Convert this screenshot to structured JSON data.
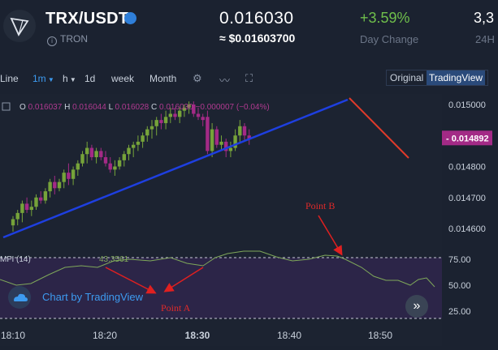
{
  "header": {
    "pair": "TRX/USDT",
    "coin_name": "TRON",
    "price": "0.016030",
    "usd_price": "≈ $0.01603700",
    "change": "+3.59%",
    "change_label": "Day Change",
    "high_partial": "3,3",
    "high_label": "24H"
  },
  "toolbar": {
    "intervals": [
      "Line",
      "1m",
      "h",
      "1d",
      "week",
      "Month"
    ],
    "view_original": "Original",
    "view_tradingview": "TradingView"
  },
  "chart_data": {
    "type": "candlestick",
    "ohlc_legend": {
      "O": "0.016037",
      "H": "0.016044",
      "L": "0.016028",
      "C": "0.016030",
      "change": "−0.000007 (−0.04%)"
    },
    "price_axis": [
      "0.015000",
      "0.014900",
      "0.014800",
      "0.014700",
      "0.014600"
    ],
    "current_price_tag": "0.014892",
    "time_axis": [
      "18:10",
      "18:20",
      "18:30",
      "18:40",
      "18:50"
    ],
    "indicator": {
      "name": "MFI (14)",
      "value": "43.3561",
      "levels": [
        "75.00",
        "50.00",
        "25.00"
      ]
    },
    "annotations": [
      "Point B",
      "Point A"
    ],
    "watermark": "Chart by TradingView",
    "colors": {
      "up": "#76a33a",
      "down": "#a32a86",
      "trend_up": "#1e3fe0",
      "trend_down": "#e03a2a",
      "arrow": "#e02020",
      "mfi_band": "#2c2548"
    }
  }
}
